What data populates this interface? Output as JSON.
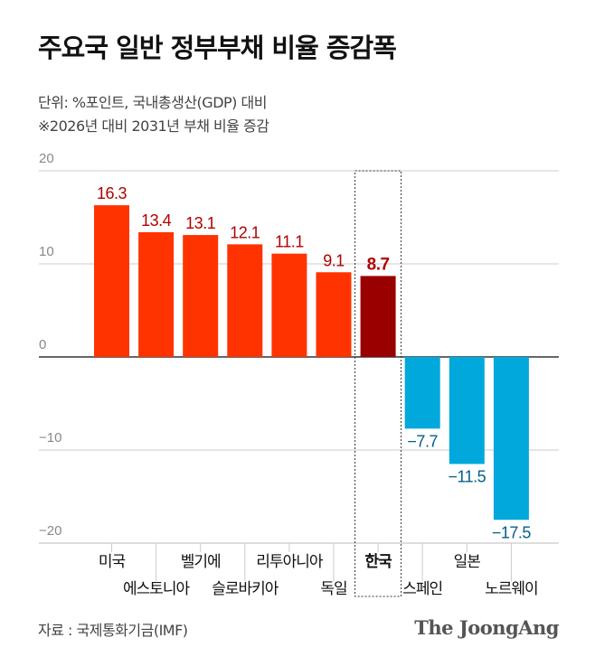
{
  "title": "주요국 일반 정부부채 비율 증감폭",
  "subtitle": [
    "단위: %포인트, 국내총생산(GDP) 대비",
    "※2026년 대비 2031년 부채 비율 증감"
  ],
  "source": "자료 : 국제통화기금(IMF)",
  "logo": "The JoongAng",
  "colors": {
    "positive": "#ff3300",
    "highlight": "#990000",
    "negative": "#00a8db",
    "positive_label": "#b00000",
    "negative_label": "#005f8f"
  },
  "chart_data": {
    "type": "bar",
    "categories": [
      "미국",
      "에스토니아",
      "벨기에",
      "슬로바키아",
      "리투아니아",
      "독일",
      "한국",
      "스페인",
      "일본",
      "노르웨이"
    ],
    "values": [
      16.3,
      13.4,
      13.1,
      12.1,
      11.1,
      9.1,
      8.7,
      -7.7,
      -11.5,
      -17.5
    ],
    "value_labels": [
      "16.3",
      "13.4",
      "13.1",
      "12.1",
      "11.1",
      "9.1",
      "8.7",
      "−7.7",
      "−11.5",
      "−17.5"
    ],
    "highlight": "한국",
    "ylim": [
      -20,
      20
    ],
    "yticks": [
      20,
      10,
      0,
      -10,
      -20
    ],
    "ytick_labels": [
      "20",
      "10",
      "0",
      "−10",
      "−20"
    ],
    "grid": true
  }
}
